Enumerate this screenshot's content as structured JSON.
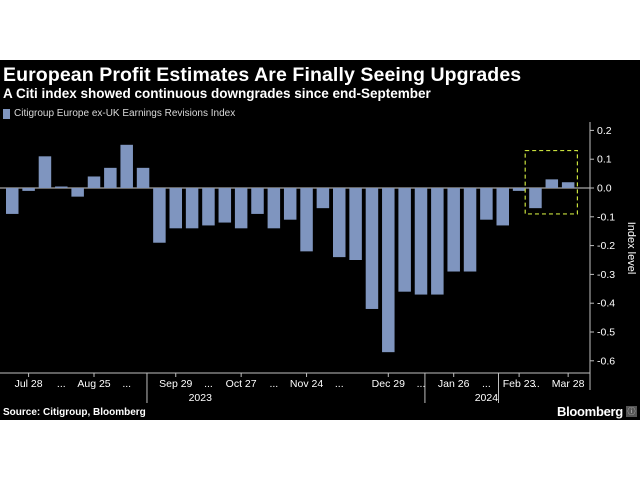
{
  "title": "European Profit Estimates Are Finally Seeing Upgrades",
  "subtitle": "A Citi index showed continuous downgrades since end-September",
  "source": "Source: Citigroup, Bloomberg",
  "brand": "Bloomberg",
  "colors": {
    "bar": "#7f95bf",
    "background": "#000000",
    "highlight": "#c8e03c"
  },
  "chart_data": {
    "type": "bar",
    "series": [
      {
        "name": "Citigroup Europe ex-UK Earnings Revisions Index",
        "values": [
          -0.09,
          -0.01,
          0.11,
          0.0,
          -0.03,
          0.04,
          0.07,
          0.15,
          0.07,
          -0.19,
          -0.14,
          -0.14,
          -0.13,
          -0.12,
          -0.14,
          -0.09,
          -0.14,
          -0.11,
          -0.22,
          -0.07,
          -0.24,
          -0.25,
          -0.42,
          -0.57,
          -0.36,
          -0.37,
          -0.37,
          -0.29,
          -0.29,
          -0.11,
          -0.13,
          -0.01,
          -0.07,
          0.03,
          0.02
        ]
      }
    ],
    "yticks": [
      "0.2",
      "0.1",
      "0.0",
      "-0.1",
      "-0.2",
      "-0.3",
      "-0.4",
      "-0.5",
      "-0.6"
    ],
    "ylim": [
      -0.65,
      0.22
    ],
    "ylabel": "Index level",
    "xtick_labels": [
      {
        "label": "Jul 28",
        "index": 1
      },
      {
        "label": "...",
        "index": 3
      },
      {
        "label": "Aug 25",
        "index": 5
      },
      {
        "label": "...",
        "index": 7
      },
      {
        "label": "Sep 29",
        "index": 10
      },
      {
        "label": "...",
        "index": 12
      },
      {
        "label": "Oct 27",
        "index": 14
      },
      {
        "label": "...",
        "index": 16
      },
      {
        "label": "Nov 24",
        "index": 18
      },
      {
        "label": "...",
        "index": 20
      },
      {
        "label": "Dec 29",
        "index": 23
      },
      {
        "label": "...",
        "index": 25
      },
      {
        "label": "Jan 26",
        "index": 27
      },
      {
        "label": "...",
        "index": 29
      },
      {
        "label": "Feb 23",
        "index": 31
      },
      {
        "label": "...",
        "index": 32
      },
      {
        "label": "Mar 28",
        "index": 34
      }
    ],
    "years": [
      {
        "label": "2023",
        "index": 11.5
      },
      {
        "label": "2024",
        "index": 29
      }
    ],
    "highlight": {
      "from_index": 32,
      "to_index": 34,
      "ymin": -0.09,
      "ymax": 0.13
    },
    "grid": false,
    "legend": "top-left"
  }
}
